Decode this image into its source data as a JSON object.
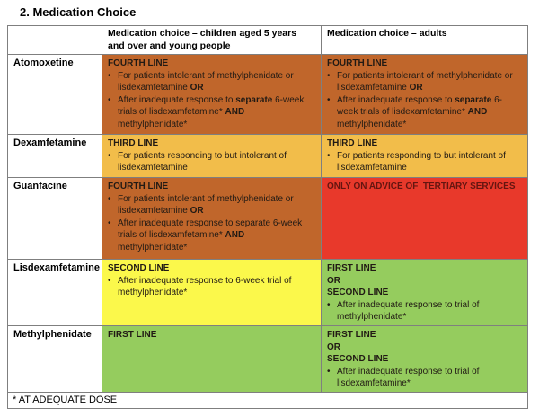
{
  "title": "2. Medication Choice",
  "footnote": "* AT ADEQUATE DOSE",
  "colors": {
    "orange": "#c0662b",
    "amber": "#f2bd4a",
    "red": "#e8392b",
    "yellow": "#fbf84b",
    "green": "#95cc5e",
    "border": "#7f7f7f",
    "red_cell_text": "#641510"
  },
  "table": {
    "columns": [
      "",
      "Medication choice – children aged 5 years and over and young people",
      "Medication choice – adults"
    ],
    "rows": [
      {
        "drug": "Atomoxetine",
        "children": {
          "color": "orange",
          "blocks": [
            {
              "type": "heading",
              "text": "FOURTH LINE"
            },
            {
              "type": "bullet",
              "segments": [
                {
                  "text": "For patients intolerant of methylphenidate or lisdexamfetamine "
                },
                {
                  "text": "OR",
                  "bold": true
                }
              ]
            },
            {
              "type": "bullet",
              "segments": [
                {
                  "text": "After inadequate response to "
                },
                {
                  "text": "separate",
                  "bold": true
                },
                {
                  "text": " 6-week trials of lisdexamfetamine* "
                },
                {
                  "text": "AND",
                  "bold": true
                },
                {
                  "text": " methylphenidate*"
                }
              ]
            }
          ]
        },
        "adults": {
          "color": "orange",
          "blocks": [
            {
              "type": "heading",
              "text": "FOURTH LINE"
            },
            {
              "type": "bullet",
              "segments": [
                {
                  "text": "For patients intolerant of methylphenidate or lisdexamfetamine "
                },
                {
                  "text": "OR",
                  "bold": true
                }
              ]
            },
            {
              "type": "bullet",
              "segments": [
                {
                  "text": "After inadequate response to "
                },
                {
                  "text": "separate",
                  "bold": true
                },
                {
                  "text": " 6-week trials of lisdexamfetamine* "
                },
                {
                  "text": "AND",
                  "bold": true
                },
                {
                  "text": " methylphenidate*"
                }
              ]
            }
          ]
        }
      },
      {
        "drug": "Dexamfetamine",
        "children": {
          "color": "amber",
          "blocks": [
            {
              "type": "heading",
              "text": "THIRD LINE"
            },
            {
              "type": "bullet",
              "segments": [
                {
                  "text": "For patients responding to but intolerant of lisdexamfetamine"
                }
              ]
            }
          ]
        },
        "adults": {
          "color": "amber",
          "blocks": [
            {
              "type": "heading",
              "text": "THIRD LINE"
            },
            {
              "type": "bullet",
              "segments": [
                {
                  "text": "For patients responding to but intolerant of lisdexamfetamine"
                }
              ]
            }
          ]
        }
      },
      {
        "drug": "Guanfacine",
        "children": {
          "color": "orange",
          "blocks": [
            {
              "type": "heading",
              "text": "FOURTH LINE"
            },
            {
              "type": "bullet",
              "segments": [
                {
                  "text": "For patients intolerant of methylphenidate or lisdexamfetamine "
                },
                {
                  "text": "OR",
                  "bold": true
                }
              ]
            },
            {
              "type": "bullet",
              "segments": [
                {
                  "text": "After inadequate response to separate 6-week trials of lisdexamfetamine* "
                },
                {
                  "text": "AND",
                  "bold": true
                },
                {
                  "text": " methylphenidate*"
                }
              ]
            }
          ]
        },
        "adults": {
          "color": "red",
          "text_color_key": "red_cell_text",
          "blocks": [
            {
              "type": "heading",
              "text": "ONLY ON ADVICE OF  TERTIARY SERVICES"
            }
          ]
        }
      },
      {
        "drug": "Lisdexamfetamine",
        "children": {
          "color": "yellow",
          "blocks": [
            {
              "type": "heading",
              "text": "SECOND LINE"
            },
            {
              "type": "bullet",
              "segments": [
                {
                  "text": "After inadequate response to 6-week trial of methylphenidate*"
                }
              ]
            }
          ]
        },
        "adults": {
          "color": "green",
          "blocks": [
            {
              "type": "heading",
              "text": "FIRST LINE"
            },
            {
              "type": "heading",
              "text": "OR"
            },
            {
              "type": "heading",
              "text": "SECOND LINE"
            },
            {
              "type": "bullet",
              "segments": [
                {
                  "text": "After inadequate response to trial of methylphenidate*"
                }
              ]
            }
          ]
        }
      },
      {
        "drug": "Methylphenidate",
        "children": {
          "color": "green",
          "blocks": [
            {
              "type": "heading",
              "text": "FIRST LINE"
            }
          ]
        },
        "adults": {
          "color": "green",
          "blocks": [
            {
              "type": "heading",
              "text": "FIRST LINE"
            },
            {
              "type": "heading",
              "text": "OR"
            },
            {
              "type": "heading",
              "text": "SECOND LINE"
            },
            {
              "type": "bullet",
              "segments": [
                {
                  "text": "After inadequate response to trial of lisdexamfetamine*"
                }
              ]
            }
          ]
        }
      }
    ]
  }
}
